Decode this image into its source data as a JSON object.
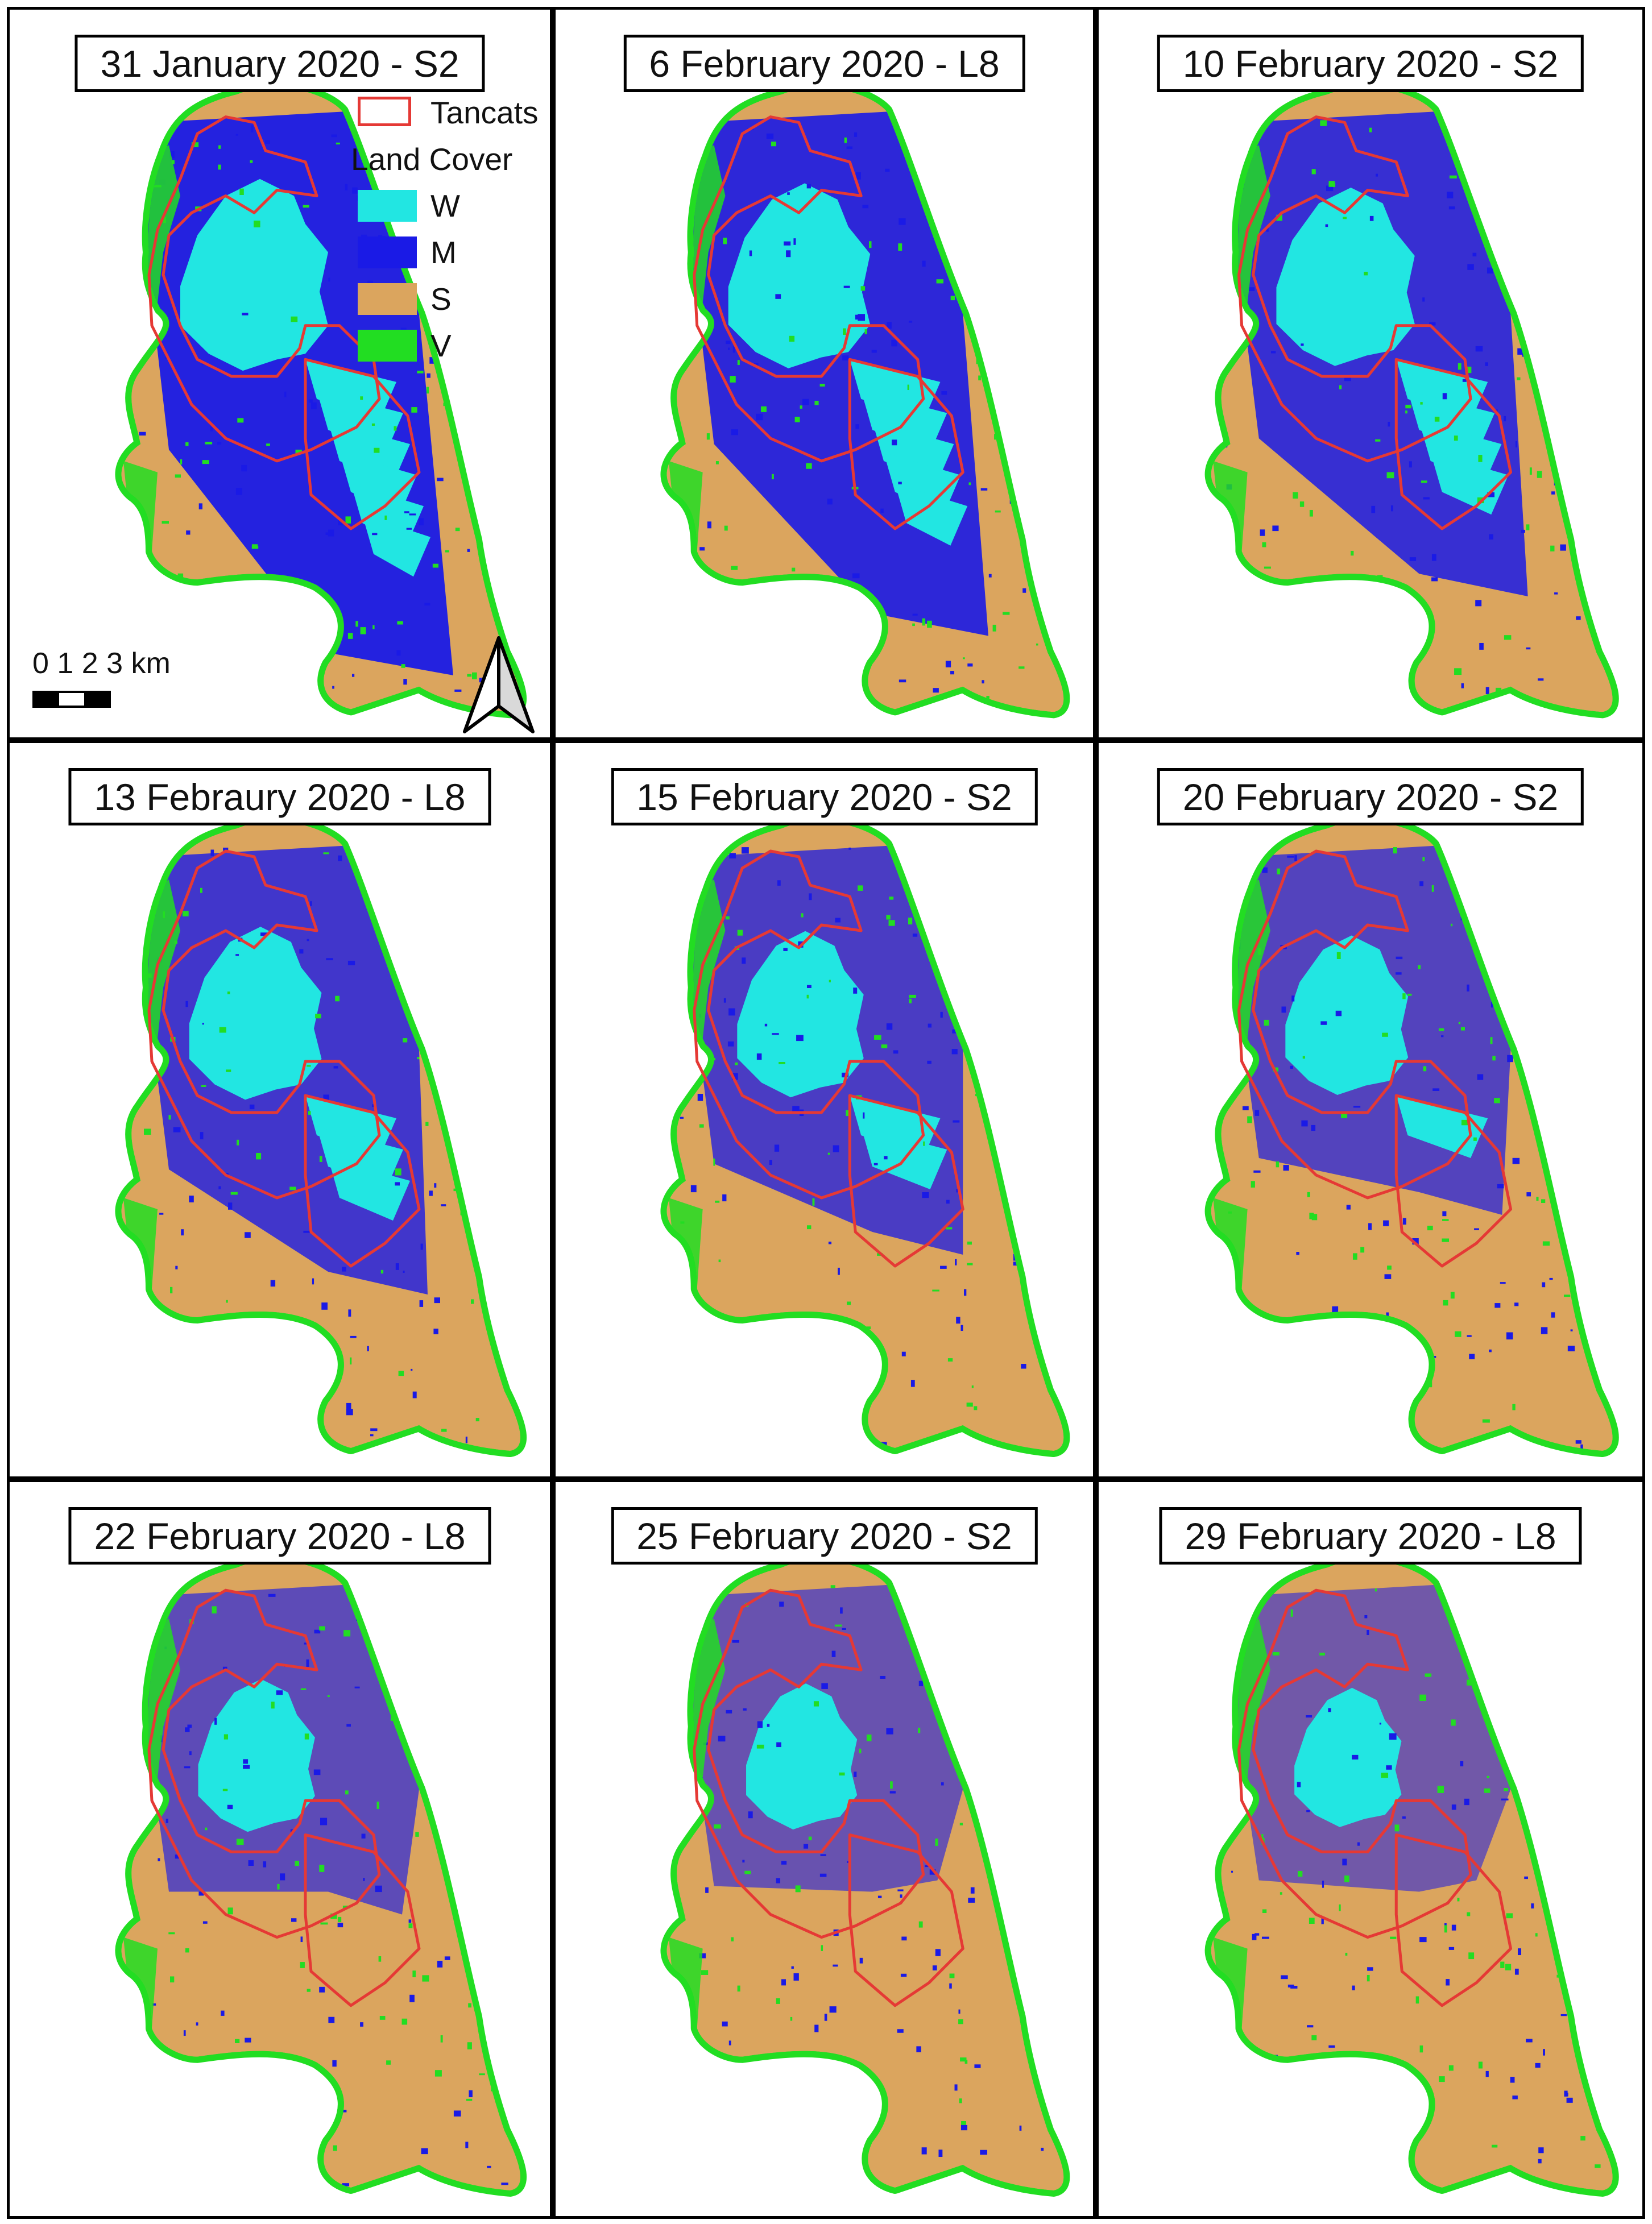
{
  "panels": [
    {
      "title": "31 January 2020 - S2",
      "stage": 0
    },
    {
      "title": "6 February 2020 - L8",
      "stage": 1
    },
    {
      "title": "10 February 2020 - S2",
      "stage": 2
    },
    {
      "title": "13 Febraury 2020 - L8",
      "stage": 3
    },
    {
      "title": "15 February 2020 - S2",
      "stage": 4
    },
    {
      "title": "20 February 2020 - S2",
      "stage": 5
    },
    {
      "title": "22 February 2020 - L8",
      "stage": 6
    },
    {
      "title": "25 February 2020 - S2",
      "stage": 7
    },
    {
      "title": "29 February 2020 - L8",
      "stage": 8
    }
  ],
  "legend": {
    "tancats_label": "Tancats",
    "header": "Land Cover",
    "classes": [
      {
        "code": "W",
        "color": "#22e6e2"
      },
      {
        "code": "M",
        "color": "#1a1ae6"
      },
      {
        "code": "S",
        "color": "#dba55e"
      },
      {
        "code": "V",
        "color": "#22dd22"
      }
    ],
    "tancats_color": "#e53935"
  },
  "scale": {
    "ticks": "0 1 2 3 km"
  },
  "north_arrow": "north-arrow-icon"
}
